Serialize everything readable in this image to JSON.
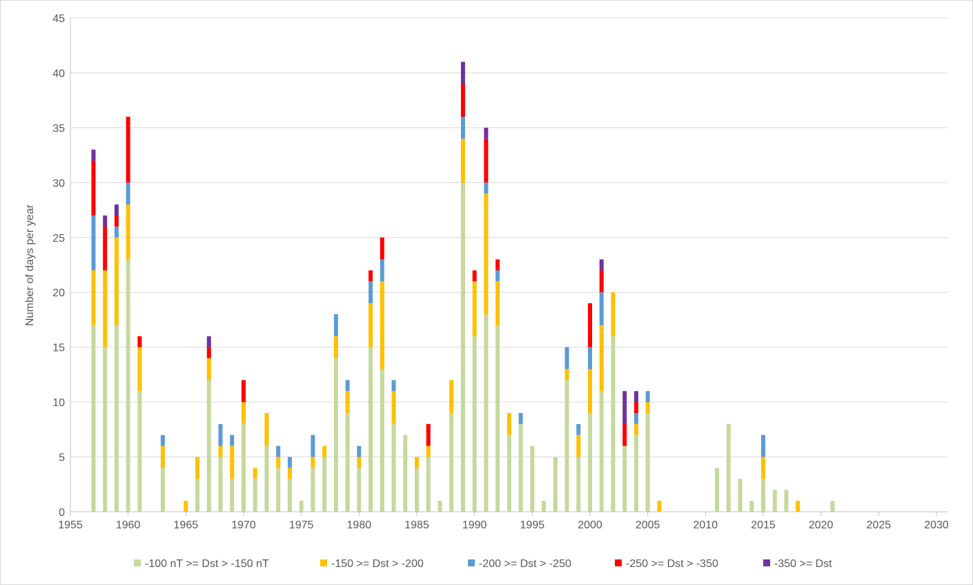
{
  "chart_data": {
    "type": "bar",
    "stacked": true,
    "title": "",
    "xlabel": "",
    "ylabel": "Number of days per year",
    "xlim": [
      1955,
      2030
    ],
    "ylim": [
      0,
      45
    ],
    "x_ticks": [
      1955,
      1960,
      1965,
      1970,
      1975,
      1980,
      1985,
      1990,
      1995,
      2000,
      2005,
      2010,
      2015,
      2020,
      2025,
      2030
    ],
    "y_ticks": [
      0,
      5,
      10,
      15,
      20,
      25,
      30,
      35,
      40,
      45
    ],
    "grid": "horizontal",
    "legend_position": "bottom",
    "x": [
      1957,
      1958,
      1959,
      1960,
      1961,
      1962,
      1963,
      1964,
      1965,
      1966,
      1967,
      1968,
      1969,
      1970,
      1971,
      1972,
      1973,
      1974,
      1975,
      1976,
      1977,
      1978,
      1979,
      1980,
      1981,
      1982,
      1983,
      1984,
      1985,
      1986,
      1987,
      1988,
      1989,
      1990,
      1991,
      1992,
      1993,
      1994,
      1995,
      1996,
      1997,
      1998,
      1999,
      2000,
      2001,
      2002,
      2003,
      2004,
      2005,
      2006,
      2007,
      2008,
      2009,
      2010,
      2011,
      2012,
      2013,
      2014,
      2015,
      2016,
      2017,
      2018,
      2019,
      2020,
      2021
    ],
    "series": [
      {
        "name": "-100 nT >= Dst > -150 nT",
        "color": "#c5d99c",
        "values": [
          17,
          15,
          17,
          23,
          11,
          0,
          4,
          0,
          0,
          3,
          12,
          5,
          3,
          8,
          3,
          6,
          4,
          3,
          1,
          4,
          5,
          14,
          9,
          4,
          15,
          13,
          8,
          7,
          4,
          5,
          1,
          9,
          30,
          16,
          18,
          17,
          7,
          8,
          6,
          1,
          5,
          12,
          5,
          9,
          11,
          16,
          6,
          7,
          9,
          0,
          0,
          0,
          0,
          0,
          4,
          8,
          3,
          1,
          3,
          2,
          2,
          0,
          0,
          0,
          1
        ]
      },
      {
        "name": "-150 >= Dst > -200",
        "color": "#ffc000",
        "values": [
          5,
          7,
          8,
          5,
          4,
          0,
          2,
          0,
          1,
          2,
          2,
          1,
          3,
          2,
          1,
          3,
          1,
          1,
          0,
          1,
          1,
          2,
          2,
          1,
          4,
          8,
          3,
          0,
          1,
          1,
          0,
          3,
          4,
          5,
          11,
          4,
          2,
          0,
          0,
          0,
          0,
          1,
          2,
          4,
          6,
          4,
          0,
          1,
          1,
          1,
          0,
          0,
          0,
          0,
          0,
          0,
          0,
          0,
          2,
          0,
          0,
          1,
          0,
          0,
          0
        ]
      },
      {
        "name": "-200 >= Dst > -250",
        "color": "#5b9bd5",
        "values": [
          5,
          0,
          1,
          2,
          0,
          0,
          1,
          0,
          0,
          0,
          0,
          2,
          1,
          0,
          0,
          0,
          1,
          1,
          0,
          2,
          0,
          2,
          1,
          1,
          2,
          2,
          1,
          0,
          0,
          0,
          0,
          0,
          2,
          0,
          1,
          1,
          0,
          1,
          0,
          0,
          0,
          2,
          1,
          2,
          3,
          0,
          0,
          1,
          1,
          0,
          0,
          0,
          0,
          0,
          0,
          0,
          0,
          0,
          2,
          0,
          0,
          0,
          0,
          0,
          0
        ]
      },
      {
        "name": "-250 >= Dst > -350",
        "color": "#ff0000",
        "values": [
          5,
          4,
          1,
          6,
          1,
          0,
          0,
          0,
          0,
          0,
          1,
          0,
          0,
          2,
          0,
          0,
          0,
          0,
          0,
          0,
          0,
          0,
          0,
          0,
          1,
          2,
          0,
          0,
          0,
          2,
          0,
          0,
          3,
          1,
          4,
          1,
          0,
          0,
          0,
          0,
          0,
          0,
          0,
          4,
          2,
          0,
          2,
          1,
          0,
          0,
          0,
          0,
          0,
          0,
          0,
          0,
          0,
          0,
          0,
          0,
          0,
          0,
          0,
          0,
          0
        ]
      },
      {
        "name": "-350 >= Dst",
        "color": "#7030a0",
        "values": [
          1,
          1,
          1,
          0,
          0,
          0,
          0,
          0,
          0,
          0,
          1,
          0,
          0,
          0,
          0,
          0,
          0,
          0,
          0,
          0,
          0,
          0,
          0,
          0,
          0,
          0,
          0,
          0,
          0,
          0,
          0,
          0,
          2,
          0,
          1,
          0,
          0,
          0,
          0,
          0,
          0,
          0,
          0,
          0,
          1,
          0,
          3,
          1,
          0,
          0,
          0,
          0,
          0,
          0,
          0,
          0,
          0,
          0,
          0,
          0,
          0,
          0,
          0,
          0,
          0
        ]
      }
    ]
  }
}
